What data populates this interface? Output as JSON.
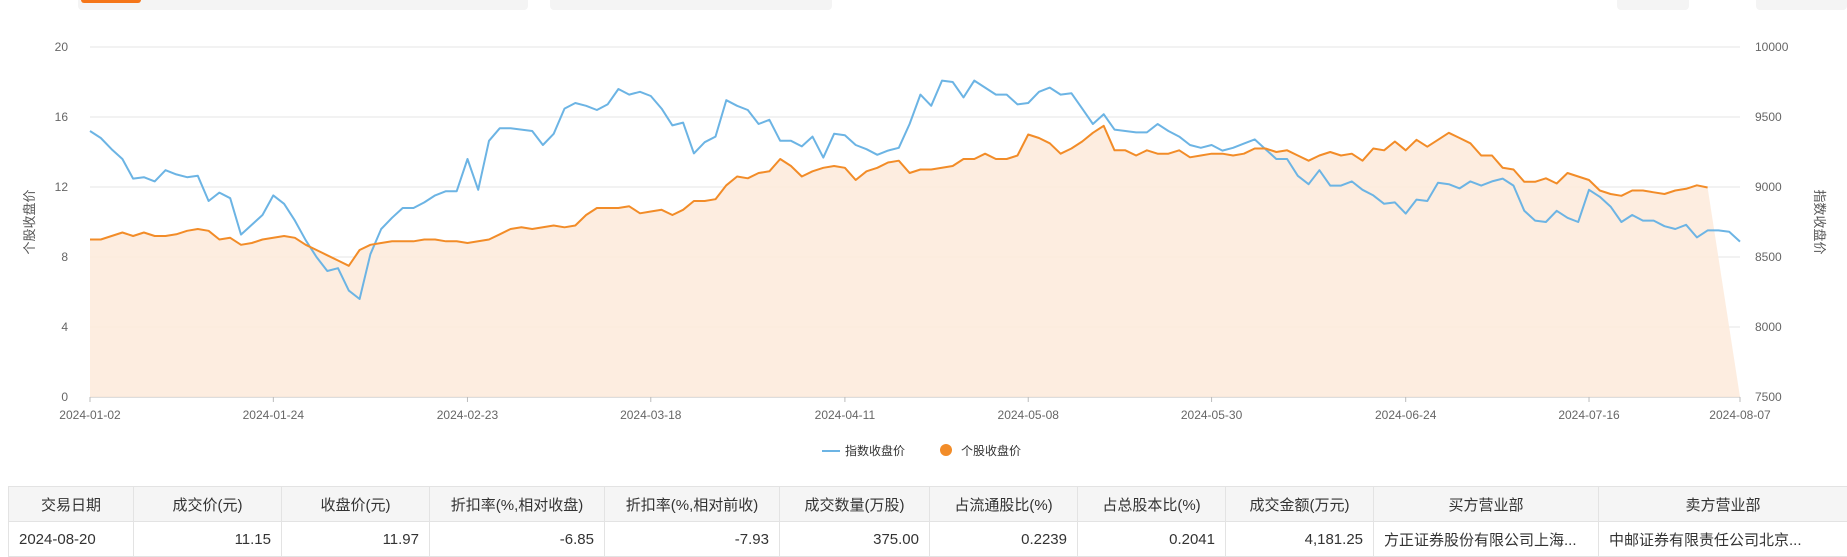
{
  "chart_data": {
    "type": "line",
    "left_axis": {
      "label": "个股收盘价",
      "ylim": [
        0,
        20
      ],
      "ticks": [
        0,
        4,
        8,
        12,
        16,
        20
      ]
    },
    "right_axis": {
      "label": "指数收盘价",
      "ylim": [
        7500,
        10000
      ],
      "ticks": [
        7500,
        8000,
        8500,
        9000,
        9500,
        10000
      ]
    },
    "x_ticks": [
      "2024-01-02",
      "2024-01-24",
      "2024-02-23",
      "2024-03-18",
      "2024-04-11",
      "2024-05-08",
      "2024-05-30",
      "2024-06-24",
      "2024-07-16",
      "2024-08-07"
    ],
    "legend_position": "bottom-center",
    "series": [
      {
        "name": "指数收盘价",
        "axis": "right",
        "color": "#6cb4e4",
        "style": "line",
        "values": [
          9400,
          9350,
          9270,
          9200,
          9060,
          9070,
          9040,
          9120,
          9090,
          9070,
          9080,
          8900,
          8960,
          8920,
          8660,
          8730,
          8800,
          8940,
          8880,
          8760,
          8620,
          8500,
          8400,
          8420,
          8260,
          8200,
          8520,
          8700,
          8780,
          8850,
          8850,
          8890,
          8940,
          8970,
          8970,
          9200,
          8980,
          9330,
          9420,
          9420,
          9410,
          9400,
          9300,
          9380,
          9560,
          9600,
          9580,
          9550,
          9590,
          9700,
          9660,
          9680,
          9650,
          9560,
          9440,
          9460,
          9240,
          9320,
          9360,
          9620,
          9580,
          9550,
          9450,
          9480,
          9330,
          9330,
          9290,
          9360,
          9210,
          9380,
          9370,
          9300,
          9270,
          9230,
          9260,
          9280,
          9450,
          9660,
          9580,
          9760,
          9750,
          9640,
          9760,
          9710,
          9660,
          9660,
          9590,
          9600,
          9680,
          9710,
          9660,
          9670,
          9560,
          9450,
          9520,
          9410,
          9400,
          9390,
          9390,
          9450,
          9400,
          9360,
          9300,
          9280,
          9300,
          9260,
          9280,
          9310,
          9340,
          9270,
          9200,
          9200,
          9080,
          9020,
          9120,
          9010,
          9010,
          9040,
          8980,
          8940,
          8880,
          8890,
          8810,
          8910,
          8900,
          9030,
          9020,
          8990,
          9040,
          9010,
          9040,
          9060,
          9010,
          8830,
          8760,
          8750,
          8830,
          8780,
          8750,
          8980,
          8930,
          8860,
          8750,
          8800,
          8760,
          8760,
          8720,
          8700,
          8730,
          8640,
          8690,
          8690,
          8680,
          8610
        ]
      },
      {
        "name": "个股收盘价",
        "axis": "left",
        "color": "#f28c28",
        "style": "area",
        "values": [
          9.0,
          9.0,
          9.2,
          9.4,
          9.2,
          9.4,
          9.2,
          9.2,
          9.3,
          9.5,
          9.6,
          9.5,
          9.0,
          9.1,
          8.7,
          8.8,
          9.0,
          9.1,
          9.2,
          9.1,
          8.7,
          8.4,
          8.1,
          7.8,
          7.5,
          8.4,
          8.7,
          8.8,
          8.9,
          8.9,
          8.9,
          9.0,
          9.0,
          8.9,
          8.9,
          8.8,
          8.9,
          9.0,
          9.3,
          9.6,
          9.7,
          9.6,
          9.7,
          9.8,
          9.7,
          9.8,
          10.4,
          10.8,
          10.8,
          10.8,
          10.9,
          10.5,
          10.6,
          10.7,
          10.4,
          10.7,
          11.2,
          11.2,
          11.3,
          12.1,
          12.6,
          12.5,
          12.8,
          12.9,
          13.6,
          13.2,
          12.6,
          12.9,
          13.1,
          13.2,
          13.1,
          12.4,
          12.9,
          13.1,
          13.4,
          13.5,
          12.8,
          13.0,
          13.0,
          13.1,
          13.2,
          13.6,
          13.6,
          13.9,
          13.6,
          13.6,
          13.8,
          15.0,
          14.8,
          14.5,
          13.9,
          14.2,
          14.6,
          15.1,
          15.5,
          14.1,
          14.1,
          13.8,
          14.1,
          13.9,
          13.9,
          14.1,
          13.7,
          13.8,
          13.9,
          13.9,
          13.8,
          13.9,
          14.2,
          14.2,
          14.0,
          14.1,
          13.8,
          13.5,
          13.8,
          14.0,
          13.8,
          13.9,
          13.5,
          14.2,
          14.1,
          14.6,
          14.1,
          14.7,
          14.3,
          14.7,
          15.1,
          14.8,
          14.5,
          13.8,
          13.8,
          13.1,
          13.0,
          12.3,
          12.3,
          12.5,
          12.2,
          12.8,
          12.6,
          12.4,
          11.8,
          11.6,
          11.5,
          11.8,
          11.8,
          11.7,
          11.6,
          11.8,
          11.9,
          12.1,
          11.97
        ]
      }
    ]
  },
  "table": {
    "headers": [
      "交易日期",
      "成交价(元)",
      "收盘价(元)",
      "折扣率(%,相对收盘)",
      "折扣率(%,相对前收)",
      "成交数量(万股)",
      "占流通股比(%)",
      "占总股本比(%)",
      "成交金额(万元)",
      "买方营业部",
      "卖方营业部"
    ],
    "rows": [
      [
        "2024-08-20",
        "11.15",
        "11.97",
        "-6.85",
        "-7.93",
        "375.00",
        "0.2239",
        "0.2041",
        "4,181.25",
        "方正证券股份有限公司上海...",
        "中邮证券有限责任公司北京..."
      ]
    ]
  }
}
